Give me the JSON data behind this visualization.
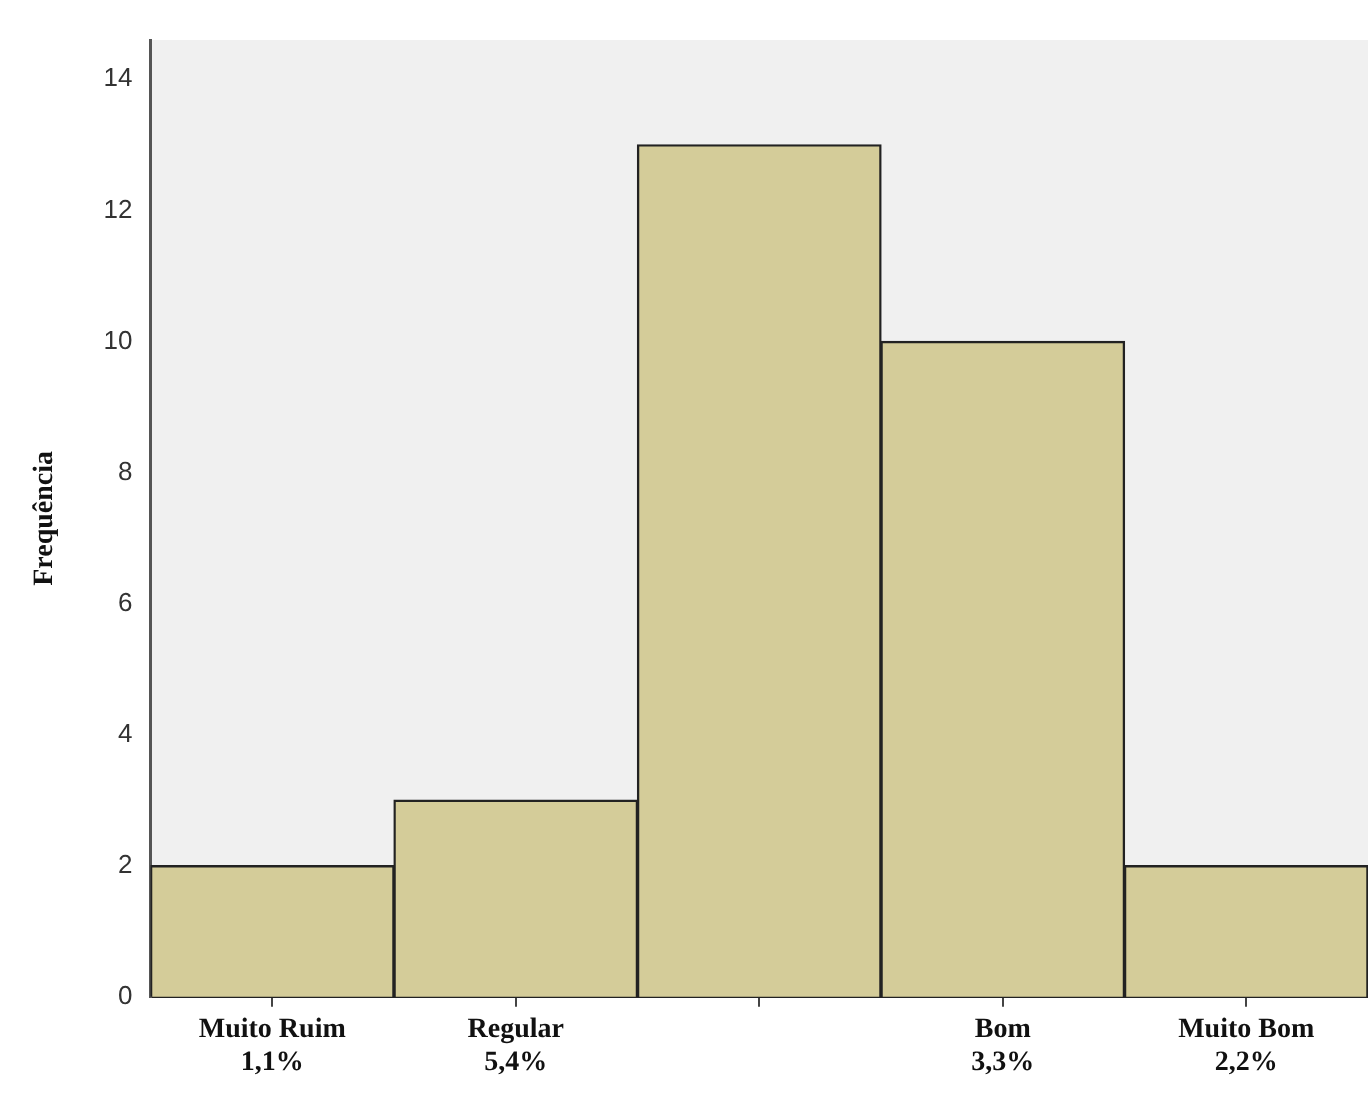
{
  "chart_data": {
    "type": "bar",
    "ylabel": "Frequência",
    "categories": [
      "Muito Ruim\n1,1%",
      "Regular\n5,4%",
      null,
      "Bom\n3,3%",
      "Muito Bom\n2,2%"
    ],
    "values": [
      2,
      3,
      13,
      10,
      2
    ],
    "color": "#d4cc99",
    "ylim": [
      0,
      14.6
    ],
    "yticks": [
      0,
      2,
      4,
      6,
      8,
      10,
      12,
      14
    ],
    "grid": false,
    "legend": false
  }
}
